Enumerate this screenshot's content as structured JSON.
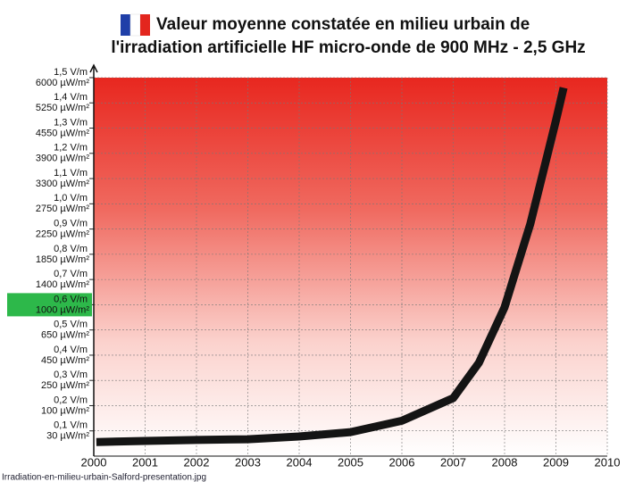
{
  "chart_data": {
    "type": "line",
    "title": "Valeur moyenne constatée en milieu urbain de",
    "subtitle": "l'irradiation artificielle HF micro-onde de 900 MHz - 2,5 GHz",
    "x": [
      2000.05,
      2001,
      2002,
      2003,
      2004,
      2005,
      2006,
      2007,
      2007.5,
      2008,
      2008.5,
      2009,
      2009.15
    ],
    "series": [
      {
        "name": "Irradiation",
        "color": "#141414",
        "values": [
          0.056,
          0.06,
          0.064,
          0.067,
          0.078,
          0.095,
          0.14,
          0.23,
          0.37,
          0.59,
          0.92,
          1.33,
          1.46
        ]
      }
    ],
    "xlim": [
      2000,
      2010
    ],
    "xticks": [
      2000,
      2001,
      2002,
      2003,
      2004,
      2005,
      2006,
      2007,
      2008,
      2009,
      2010
    ],
    "ylim": [
      0,
      1.5
    ],
    "yticks": [
      {
        "value": 0.1,
        "label": "0,1 V/m"
      },
      {
        "value": 0.2,
        "label": "0,2 V/m"
      },
      {
        "value": 0.3,
        "label": "0,3 V/m"
      },
      {
        "value": 0.4,
        "label": "0,4 V/m"
      },
      {
        "value": 0.5,
        "label": "0,5 V/m"
      },
      {
        "value": 0.6,
        "label": "0,6 V/m"
      },
      {
        "value": 0.7,
        "label": "0,7 V/m"
      },
      {
        "value": 0.8,
        "label": "0,8 V/m"
      },
      {
        "value": 0.9,
        "label": "0,9 V/m"
      },
      {
        "value": 1.0,
        "label": "1,0 V/m"
      },
      {
        "value": 1.1,
        "label": "1,1 V/m"
      },
      {
        "value": 1.2,
        "label": "1,2 V/m"
      },
      {
        "value": 1.3,
        "label": "1,3 V/m"
      },
      {
        "value": 1.4,
        "label": "1,4 V/m"
      },
      {
        "value": 1.5,
        "label": "1,5 V/m"
      }
    ],
    "ytick_power_labels": [
      "30 µW/m²",
      "100 µW/m²",
      "250 µW/m²",
      "450 µW/m²",
      "650 µW/m²",
      "1000 µW/m²",
      "1400 µW/m²",
      "1850 µW/m²",
      "2250 µW/m²",
      "2750 µW/m²",
      "3300 µW/m²",
      "3900 µW/m²",
      "4550 µW/m²",
      "5250 µW/m²",
      "6000 µW/m²"
    ],
    "highlight_ytick": 0.6,
    "highlight_color": "#2db84a",
    "grid": true
  },
  "caption": "Irradiation-en-milieu-urbain-Salford-presentation.jpg"
}
